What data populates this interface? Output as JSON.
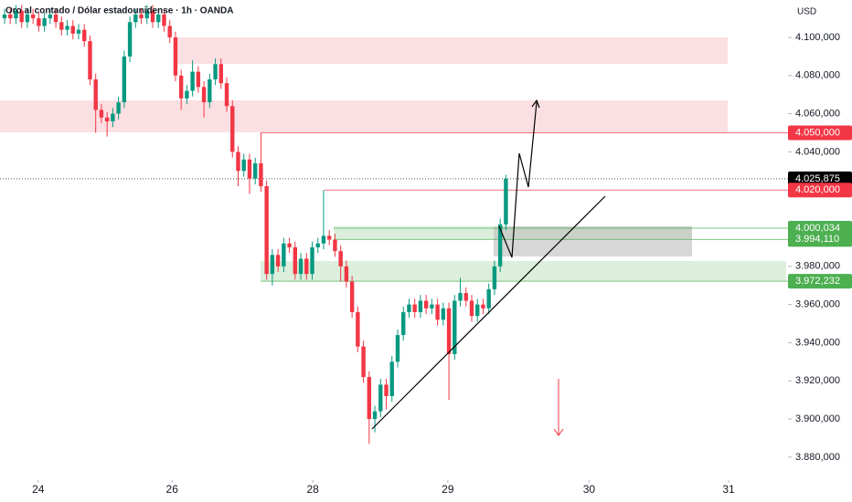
{
  "chart_data": {
    "type": "candlestick",
    "title": "Oro al contado / Dólar estadounidense · 1h · OANDA",
    "y_axis_label": "USD",
    "up_color": "#089981",
    "down_color": "#f23645",
    "x": [
      0,
      1,
      2,
      3,
      4,
      5,
      6,
      7,
      8,
      9,
      10,
      11,
      12,
      13,
      14,
      15,
      16,
      17,
      18,
      19,
      20,
      21,
      22,
      23,
      24,
      25,
      26,
      27,
      28,
      29,
      30,
      31,
      32,
      33,
      34,
      35,
      36,
      37,
      38,
      39,
      40,
      41,
      42,
      43,
      44,
      45,
      46,
      47,
      48,
      49,
      50,
      51,
      52,
      53,
      54,
      55,
      56,
      57,
      58,
      59,
      60,
      61,
      62,
      63,
      64,
      65,
      66,
      67,
      68,
      69,
      70,
      71,
      72,
      73,
      74,
      75,
      76,
      77,
      78,
      79,
      80,
      81,
      82,
      83,
      84,
      85,
      86,
      87,
      88
    ],
    "open": [
      4110,
      4112,
      4110,
      4114,
      4108,
      4112,
      4110,
      4106,
      4110,
      4112,
      4108,
      4104,
      4106,
      4102,
      4104,
      4098,
      4078,
      4062,
      4058,
      4056,
      4060,
      4066,
      4090,
      4108,
      4112,
      4110,
      4114,
      4108,
      4112,
      4106,
      4100,
      4080,
      4068,
      4072,
      4082,
      4074,
      4066,
      4078,
      4086,
      4076,
      4064,
      4040,
      4030,
      4036,
      4026,
      4034,
      4022,
      3976,
      3986,
      3980,
      3992,
      3990,
      3976,
      3984,
      3976,
      3990,
      3992,
      3996,
      3994,
      3988,
      3980,
      3972,
      3956,
      3938,
      3922,
      3900,
      3904,
      3918,
      3912,
      3930,
      3944,
      3956,
      3960,
      3956,
      3962,
      3958,
      3960,
      3952,
      3958,
      3934,
      3962,
      3966,
      3962,
      3954,
      3960,
      3958,
      3968,
      3980,
      4002
    ],
    "high": [
      4115,
      4115,
      4117,
      4117,
      4115,
      4115,
      4113,
      4113,
      4115,
      4115,
      4111,
      4109,
      4109,
      4107,
      4107,
      4101,
      4081,
      4065,
      4061,
      4063,
      4069,
      4093,
      4111,
      4115,
      4115,
      4117,
      4117,
      4115,
      4115,
      4109,
      4103,
      4083,
      4075,
      4088,
      4085,
      4077,
      4081,
      4089,
      4089,
      4079,
      4067,
      4043,
      4039,
      4039,
      4037,
      4050,
      4025,
      3989,
      3989,
      3995,
      3995,
      3993,
      3987,
      3987,
      3993,
      3995,
      4020,
      3999,
      3997,
      3991,
      3983,
      3975,
      3959,
      3941,
      3925,
      3907,
      3921,
      3921,
      3933,
      3947,
      3959,
      3963,
      3963,
      3965,
      3965,
      3963,
      3963,
      3961,
      3961,
      3965,
      3974,
      3969,
      3965,
      3963,
      3963,
      3971,
      3983,
      4005,
      4028
    ],
    "low": [
      4107,
      4107,
      4107,
      4105,
      4105,
      4107,
      4103,
      4103,
      4107,
      4105,
      4101,
      4101,
      4099,
      4099,
      4095,
      4075,
      4050,
      4055,
      4048,
      4053,
      4057,
      4063,
      4087,
      4105,
      4107,
      4107,
      4105,
      4105,
      4103,
      4097,
      4077,
      4062,
      4065,
      4069,
      4071,
      4058,
      4063,
      4075,
      4073,
      4061,
      4037,
      4022,
      4027,
      4018,
      4023,
      4019,
      3973,
      3970,
      3977,
      3977,
      3987,
      3973,
      3973,
      3973,
      3973,
      3987,
      3989,
      3991,
      3985,
      3972,
      3969,
      3953,
      3935,
      3919,
      3887,
      3893,
      3901,
      3905,
      3909,
      3927,
      3941,
      3953,
      3953,
      3953,
      3955,
      3955,
      3949,
      3949,
      3910,
      3931,
      3959,
      3959,
      3951,
      3951,
      3955,
      3955,
      3965,
      3977,
      3999
    ],
    "close": [
      4112,
      4110,
      4114,
      4108,
      4112,
      4110,
      4106,
      4110,
      4112,
      4108,
      4104,
      4106,
      4102,
      4104,
      4098,
      4078,
      4062,
      4058,
      4056,
      4060,
      4066,
      4090,
      4108,
      4112,
      4110,
      4114,
      4108,
      4112,
      4106,
      4100,
      4080,
      4068,
      4072,
      4082,
      4074,
      4066,
      4078,
      4086,
      4076,
      4064,
      4040,
      4030,
      4036,
      4026,
      4034,
      4022,
      3976,
      3986,
      3980,
      3992,
      3990,
      3976,
      3984,
      3976,
      3990,
      3992,
      3996,
      3994,
      3988,
      3980,
      3972,
      3956,
      3938,
      3922,
      3900,
      3904,
      3918,
      3912,
      3930,
      3944,
      3956,
      3960,
      3956,
      3962,
      3958,
      3960,
      3952,
      3958,
      3934,
      3962,
      3966,
      3962,
      3954,
      3960,
      3958,
      3968,
      3980,
      4002,
      4025.875
    ],
    "xlim": [
      -0.8,
      137.2
    ],
    "xticks": [
      {
        "value": 5.9,
        "label": "24"
      },
      {
        "value": 29.4,
        "label": "26"
      },
      {
        "value": 54.1,
        "label": "28"
      },
      {
        "value": 77.8,
        "label": "29"
      },
      {
        "value": 102.6,
        "label": "30"
      },
      {
        "value": 127.1,
        "label": "31"
      }
    ],
    "ylim": [
      3856.5,
      4119.6
    ],
    "yticks": [
      {
        "value": 4100,
        "label": "4.100,000"
      },
      {
        "value": 4080,
        "label": "4.080,000"
      },
      {
        "value": 4060,
        "label": "4.060,000"
      },
      {
        "value": 4040,
        "label": "4.040,000"
      },
      {
        "value": 3980,
        "label": "3.980,000"
      },
      {
        "value": 3960,
        "label": "3.960,000"
      },
      {
        "value": 3940,
        "label": "3.940,000"
      },
      {
        "value": 3920,
        "label": "3.920,000"
      },
      {
        "value": 3900,
        "label": "3.900,000"
      },
      {
        "value": 3880,
        "label": "3.880,000"
      }
    ],
    "price_labels": [
      {
        "value": 4050,
        "label": "4.050,000",
        "color": "#f23645"
      },
      {
        "value": 4025.875,
        "label": "4.025,875",
        "color": "#000000"
      },
      {
        "value": 4020,
        "label": "4.020,000",
        "color": "#f23645"
      },
      {
        "value": 4000.034,
        "label": "4.000,034",
        "color": "#4caf50"
      },
      {
        "value": 3994.11,
        "label": "3.994,110",
        "color": "#4caf50"
      },
      {
        "value": 3972.232,
        "label": "3.972,232",
        "color": "#4caf50"
      }
    ]
  }
}
